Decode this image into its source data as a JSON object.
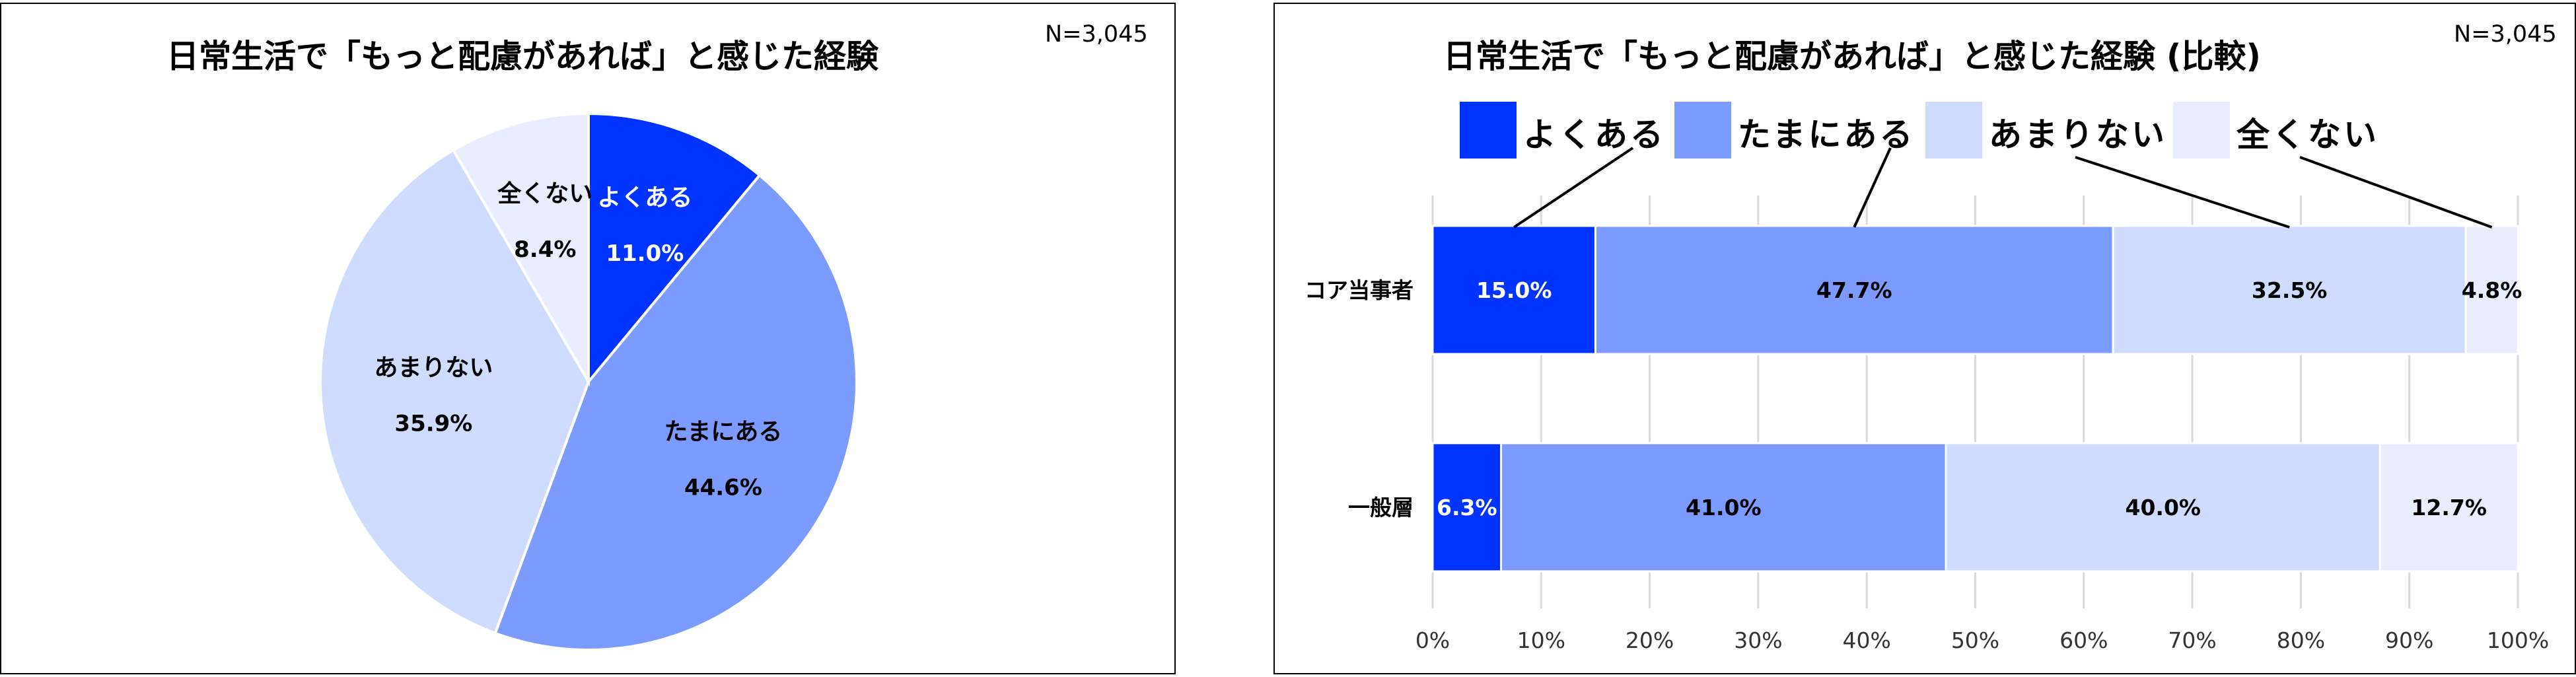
{
  "colors": {
    "dark_blue": "#0033ff",
    "medium_blue": "#7b9bff",
    "light_blue": "#d0dcff",
    "pale_blue": "#e8eeff",
    "gridline": "#d9d9d9"
  },
  "chart_data": [
    {
      "type": "pie",
      "title": "日常生活で「もっと配慮があれば」と感じた経験",
      "note": "N=3,045",
      "slices": [
        {
          "label": "よくある",
          "value": 11.0,
          "value_label": "11.0%",
          "color": "#0033ff"
        },
        {
          "label": "たまにある",
          "value": 44.6,
          "value_label": "44.6%",
          "color": "#7b9bff"
        },
        {
          "label": "あまりない",
          "value": 35.9,
          "value_label": "35.9%",
          "color": "#d0dcff"
        },
        {
          "label": "全くない",
          "value": 8.4,
          "value_label": "8.4%",
          "color": "#e8eeff"
        }
      ]
    },
    {
      "type": "bar",
      "orientation": "horizontal",
      "stacked": "100%",
      "title": "日常生活で「もっと配慮があれば」と感じた経験 (比較)",
      "note": "N=3,045",
      "legend_position": "top",
      "categories": [
        "コア当事者",
        "一般層"
      ],
      "series": [
        {
          "name": "よくある",
          "color": "#0033ff",
          "values": [
            15.0,
            6.3
          ],
          "value_labels": [
            "15.0%",
            "6.3%"
          ]
        },
        {
          "name": "たまにある",
          "color": "#7b9bff",
          "values": [
            47.7,
            41.0
          ],
          "value_labels": [
            "47.7%",
            "41.0%"
          ]
        },
        {
          "name": "あまりない",
          "color": "#d0dcff",
          "values": [
            32.5,
            40.0
          ],
          "value_labels": [
            "32.5%",
            "40.0%"
          ]
        },
        {
          "name": "全くない",
          "color": "#e8eeff",
          "values": [
            4.8,
            12.7
          ],
          "value_labels": [
            "4.8%",
            "12.7%"
          ]
        }
      ],
      "xlim": [
        0,
        100
      ],
      "xticks": [
        "0%",
        "10%",
        "20%",
        "30%",
        "40%",
        "50%",
        "60%",
        "70%",
        "80%",
        "90%",
        "100%"
      ],
      "grid": true
    }
  ]
}
